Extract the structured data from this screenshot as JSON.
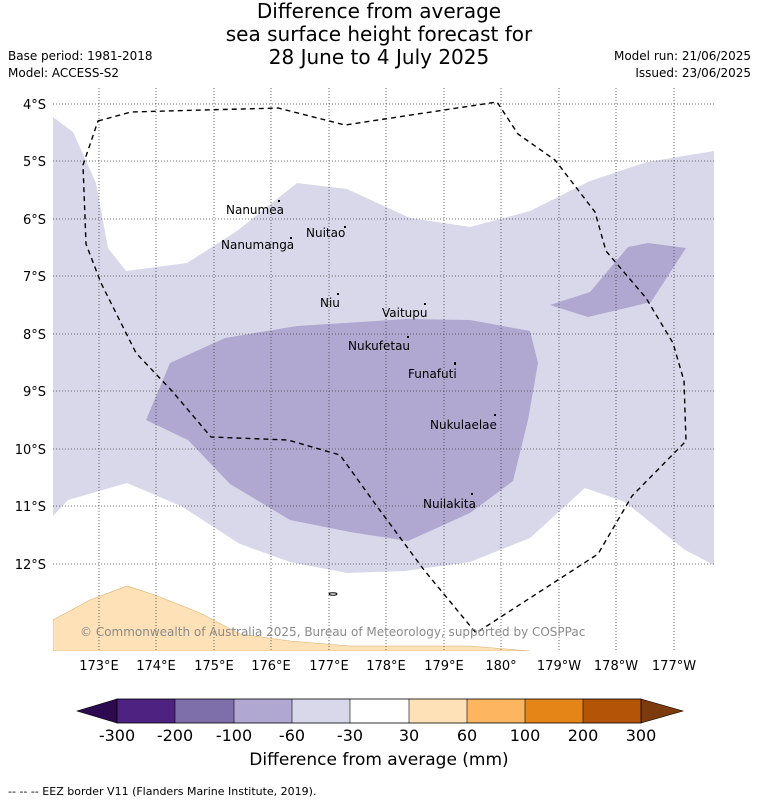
{
  "title_lines": [
    "Difference from average",
    "sea surface height forecast for",
    "28 June to 4 July 2025"
  ],
  "base_period": "Base period: 1981-2018",
  "model": "Model: ACCESS-S2",
  "model_run": "Model run: 21/06/2025",
  "issued": "Issued: 23/06/2025",
  "copyright": "© Commonwealth of Australia 2025, Bureau of Meteorology, supported by COSPPac",
  "lat_labels": [
    "4°S",
    "5°S",
    "6°S",
    "7°S",
    "8°S",
    "9°S",
    "10°S",
    "11°S",
    "12°S"
  ],
  "lon_labels": [
    "173°E",
    "174°E",
    "175°E",
    "176°E",
    "177°E",
    "178°E",
    "179°E",
    "180°",
    "179°W",
    "178°W",
    "177°W"
  ],
  "places": [
    "Nanumea",
    "Nuitao",
    "Nanumanga",
    "Niu",
    "Vaitupu",
    "Nukufetau",
    "Funafuti",
    "Nukulaelae",
    "Nuilakita"
  ],
  "colorbar": {
    "ticks": [
      "-300",
      "-200",
      "-100",
      "-60",
      "-30",
      "30",
      "60",
      "100",
      "200",
      "300"
    ],
    "colors": [
      "#4d2280",
      "#7e6fab",
      "#b0a8d1",
      "#d8d8ea",
      "#ffffff",
      "#fee1b7",
      "#fdb55f",
      "#e58417",
      "#b35406"
    ],
    "under_color": "#2d0a4f",
    "over_color": "#7d3a0c",
    "label": "Difference from average (mm)"
  },
  "legend_footer": "-- -- -- EEZ border V11 (Flanders Marine Institute, 2019)."
}
